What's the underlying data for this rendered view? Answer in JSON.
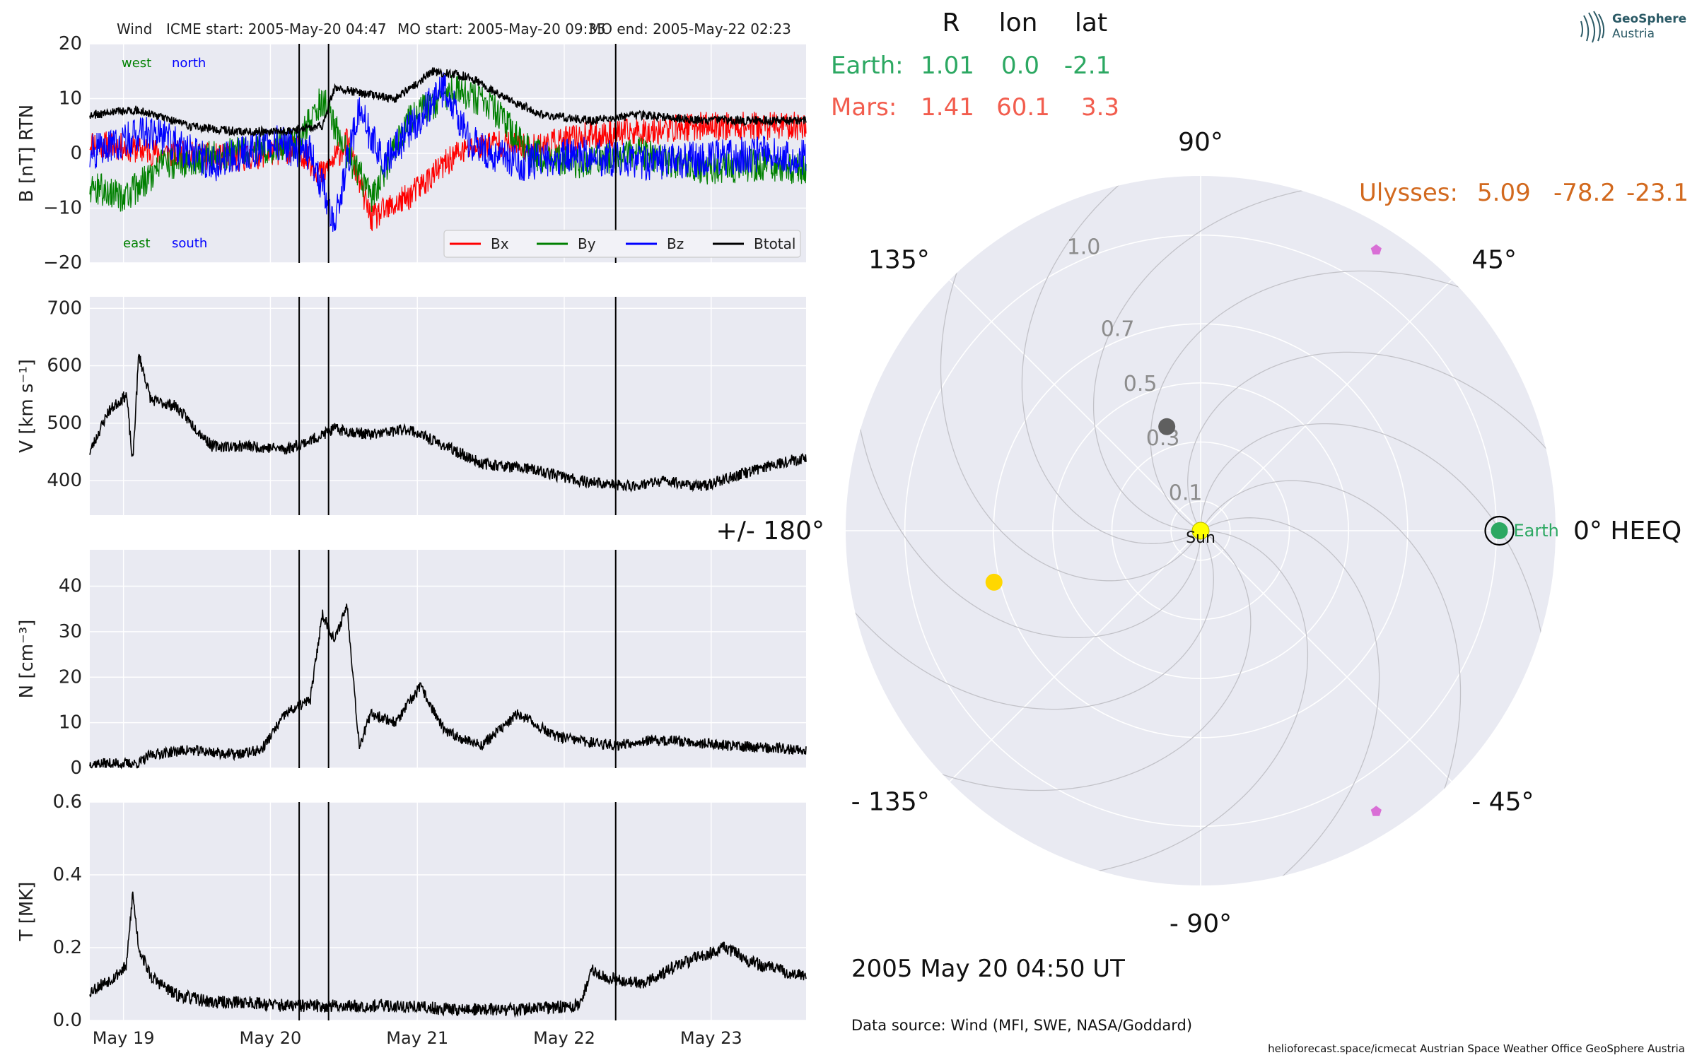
{
  "header": {
    "spacecraft": "Wind",
    "icme_start": "ICME start: 2005-May-20 04:47",
    "mo_start": "MO start: 2005-May-20 09:35",
    "mo_end": "MO end: 2005-May-22 02:23"
  },
  "logo": {
    "line1": "GeoSphere",
    "line2": "Austria"
  },
  "positions": {
    "headers": [
      "R",
      "lon",
      "lat"
    ],
    "rows": [
      {
        "name": "Earth:",
        "R": "1.01",
        "lon": "0.0",
        "lat": "-2.1",
        "color": "#2ca862"
      },
      {
        "name": "Mars:",
        "R": "1.41",
        "lon": "60.1",
        "lat": "3.3",
        "color": "#f25d4e"
      }
    ],
    "ulysses": {
      "name": "Ulysses:",
      "R": "5.09",
      "lon": "-78.2",
      "lat": "-23.1",
      "color": "#d2691e"
    }
  },
  "timestamp": "2005 May 20  04:50 UT",
  "data_source": "Data source: Wind (MFI, SWE, NASA/Goddard)",
  "footer": "helioforecast.space/icmecat   Austrian Space Weather Office   GeoSphere Austria",
  "colors": {
    "panel_bg": "#e9eaf2",
    "grid": "#ffffff",
    "bx": "#ff0000",
    "by": "#008000",
    "bz": "#0000ff",
    "btotal": "#000000",
    "earth": "#2ca862",
    "mercury": "#5f5f5f",
    "venus": "#ffd700",
    "sun": "#ffff00",
    "ulysses_marker": "#d96fd6"
  },
  "chart_data": [
    {
      "type": "line",
      "panel": "magnetic_field",
      "ylabel": "B [nT] RTN",
      "ylim": [
        -20,
        20
      ],
      "yticks": [
        "20",
        "10",
        "0",
        "−10",
        "−20"
      ],
      "xlim": [
        "2005-05-18 18:30",
        "2005-05-23 15:30"
      ],
      "annotations": {
        "top_left": "west",
        "top_right": "north",
        "bottom_left": "east",
        "bottom_right": "south"
      },
      "legend": "bottom-right",
      "series": [
        {
          "name": "Bx",
          "x_hours": [
            0,
            12,
            24,
            34,
            38,
            42,
            46,
            52,
            60,
            66,
            72,
            80,
            90,
            100,
            110,
            117
          ],
          "values": [
            2,
            0,
            -1,
            1,
            -4,
            2,
            -12,
            -8,
            0,
            2,
            1,
            3,
            4,
            5,
            5,
            5
          ]
        },
        {
          "name": "By",
          "x_hours": [
            0,
            6,
            12,
            24,
            34,
            38,
            42,
            46,
            52,
            60,
            66,
            72,
            80,
            90,
            100,
            110,
            117
          ],
          "values": [
            -6,
            -8,
            -2,
            0,
            2,
            10,
            0,
            -8,
            6,
            12,
            8,
            0,
            -2,
            0,
            -3,
            -2,
            -3
          ]
        },
        {
          "name": "Bz",
          "x_hours": [
            0,
            10,
            20,
            30,
            36,
            40,
            44,
            48,
            52,
            58,
            62,
            70,
            80,
            90,
            100,
            110,
            117
          ],
          "values": [
            0,
            4,
            -2,
            2,
            0,
            -12,
            8,
            -2,
            4,
            12,
            2,
            -2,
            0,
            -2,
            -1,
            0,
            -1
          ]
        },
        {
          "name": "Btotal",
          "x_hours": [
            0,
            8,
            16,
            24,
            32,
            38,
            40,
            44,
            50,
            56,
            62,
            68,
            74,
            82,
            90,
            100,
            110,
            117
          ],
          "values": [
            7,
            8,
            5,
            4,
            4,
            5,
            12,
            11,
            10,
            15,
            14,
            10,
            7,
            6,
            7,
            6,
            6,
            6
          ]
        }
      ]
    },
    {
      "type": "line",
      "panel": "speed",
      "ylabel": "V [km s⁻¹]",
      "ylim": [
        340,
        720
      ],
      "yticks": [
        "700",
        "600",
        "500",
        "400"
      ],
      "series": [
        {
          "name": "V",
          "x_hours": [
            0,
            3,
            6,
            7,
            8,
            10,
            14,
            20,
            26,
            32,
            36,
            40,
            46,
            52,
            58,
            64,
            72,
            80,
            88,
            94,
            100,
            106,
            112,
            117
          ],
          "values": [
            450,
            520,
            550,
            430,
            620,
            540,
            530,
            460,
            460,
            455,
            470,
            490,
            480,
            490,
            460,
            430,
            420,
            400,
            390,
            400,
            390,
            410,
            430,
            440
          ]
        }
      ]
    },
    {
      "type": "line",
      "panel": "density",
      "ylabel": "N [cm⁻³]",
      "ylim": [
        0,
        48
      ],
      "yticks": [
        "40",
        "30",
        "20",
        "10",
        "0"
      ],
      "series": [
        {
          "name": "N",
          "x_hours": [
            0,
            8,
            10,
            16,
            24,
            28,
            32,
            36,
            38,
            40,
            42,
            44,
            46,
            50,
            54,
            58,
            64,
            70,
            76,
            80,
            86,
            90,
            96,
            104,
            117
          ],
          "values": [
            1,
            1,
            3,
            4,
            3,
            4,
            12,
            15,
            34,
            28,
            36,
            5,
            12,
            10,
            18,
            8,
            5,
            12,
            7,
            6,
            5,
            6,
            6,
            5,
            4
          ]
        }
      ]
    },
    {
      "type": "line",
      "panel": "temperature",
      "ylabel": "T [MK]",
      "ylim": [
        0,
        0.6
      ],
      "yticks": [
        "0.6",
        "0.4",
        "0.2",
        "0.0"
      ],
      "xticklabels": [
        "May 19",
        "May 20",
        "May 21",
        "May 22",
        "May 23"
      ],
      "series": [
        {
          "name": "T",
          "x_hours": [
            0,
            4,
            6,
            7,
            8,
            10,
            14,
            20,
            26,
            32,
            38,
            44,
            50,
            60,
            70,
            80,
            82,
            84,
            90,
            96,
            100,
            104,
            108,
            112,
            117
          ],
          "values": [
            0.08,
            0.12,
            0.15,
            0.35,
            0.2,
            0.12,
            0.07,
            0.05,
            0.05,
            0.04,
            0.04,
            0.04,
            0.04,
            0.03,
            0.03,
            0.04,
            0.14,
            0.12,
            0.1,
            0.15,
            0.18,
            0.2,
            0.16,
            0.14,
            0.12
          ]
        }
      ]
    },
    {
      "type": "scatter",
      "panel": "polar_position_plot",
      "rticks": [
        "0.1",
        "0.3",
        "0.5",
        "0.7",
        "1.0"
      ],
      "angle_labels": [
        "0° HEEQ",
        "45°",
        "90°",
        "135°",
        "+/- 180°",
        "- 135°",
        "- 90°",
        "- 45°"
      ],
      "bodies": [
        {
          "name": "Sun",
          "r": 0.0,
          "lon_deg": 0
        },
        {
          "name": "Earth",
          "r": 1.01,
          "lon_deg": 0.0
        },
        {
          "name": "Mercury",
          "r": 0.37,
          "lon_deg": 108
        },
        {
          "name": "Venus",
          "r": 0.72,
          "lon_deg": -166
        },
        {
          "name": "Ulysses marker",
          "r": 1.12,
          "lon_deg": 58
        },
        {
          "name": "Ulysses marker 2",
          "r": 1.12,
          "lon_deg": -58
        }
      ]
    }
  ]
}
